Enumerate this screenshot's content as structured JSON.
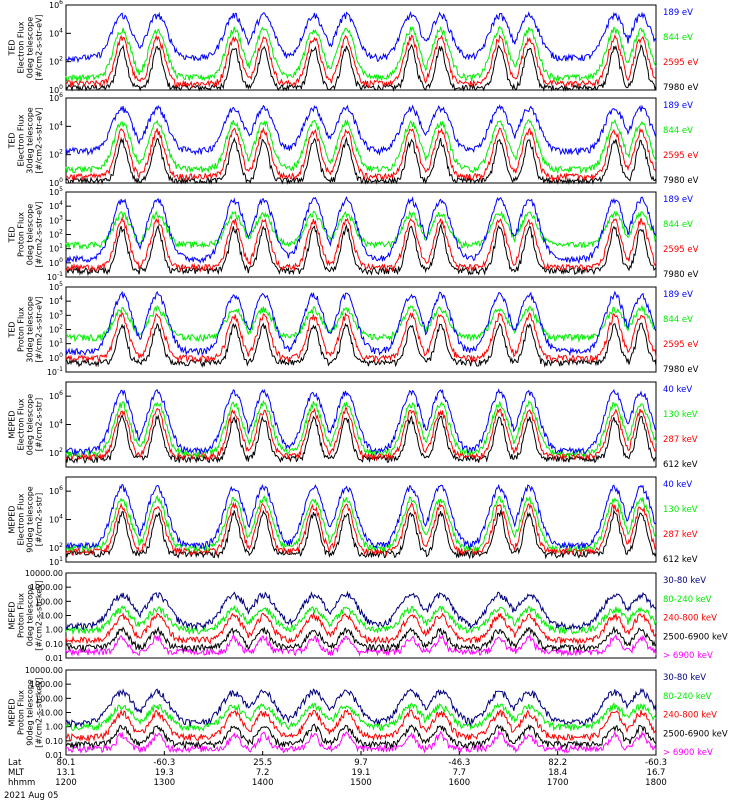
{
  "colors": {
    "blue": "#0000ff",
    "green": "#00ee00",
    "red": "#ff0000",
    "black": "#000000",
    "magenta": "#ff00ff",
    "dark_blue": "#00007f"
  },
  "chart_data": [
    {
      "type": "line",
      "panel": 1,
      "ylabel": [
        "TED",
        "Electron Flux",
        "0deg telescope",
        "[#/cm2-s-str-eV]"
      ],
      "yscale": "log",
      "ylim": [
        1,
        1000000
      ],
      "yticks": [
        "10^0",
        "10^2",
        "10^4",
        "10^6"
      ],
      "series": [
        {
          "name": "7980 eV",
          "color": "black",
          "baseline": 1.5,
          "peak": 1000
        },
        {
          "name": "2595 eV",
          "color": "red",
          "baseline": 3,
          "peak": 5000
        },
        {
          "name": "844 eV",
          "color": "green",
          "baseline": 8,
          "peak": 20000
        },
        {
          "name": "189 eV",
          "color": "blue",
          "baseline": 200,
          "peak": 200000
        }
      ]
    },
    {
      "type": "line",
      "panel": 2,
      "ylabel": [
        "TED",
        "Electron Flux",
        "30deg telescope",
        "[#/cm2-s-str-eV]"
      ],
      "yscale": "log",
      "ylim": [
        1,
        1000000
      ],
      "yticks": [
        "10^0",
        "10^2",
        "10^4",
        "10^6"
      ],
      "series": [
        {
          "name": "7980 eV",
          "color": "black",
          "baseline": 1.5,
          "peak": 1000
        },
        {
          "name": "2595 eV",
          "color": "red",
          "baseline": 3,
          "peak": 5000
        },
        {
          "name": "844 eV",
          "color": "green",
          "baseline": 10,
          "peak": 20000
        },
        {
          "name": "189 eV",
          "color": "blue",
          "baseline": 200,
          "peak": 200000
        }
      ]
    },
    {
      "type": "line",
      "panel": 3,
      "ylabel": [
        "TED",
        "Proton Flux",
        "0deg telescope",
        "[#/cm2-s-str-eV]"
      ],
      "yscale": "log",
      "ylim": [
        0.1,
        100000
      ],
      "yticks": [
        "10^-1",
        "10^0",
        "10^1",
        "10^2",
        "10^3",
        "10^4",
        "10^5"
      ],
      "series": [
        {
          "name": "7980 eV",
          "color": "black",
          "baseline": 0.3,
          "peak": 300
        },
        {
          "name": "2595 eV",
          "color": "red",
          "baseline": 0.5,
          "peak": 1000
        },
        {
          "name": "844 eV",
          "color": "green",
          "baseline": 20,
          "peak": 3000
        },
        {
          "name": "189 eV",
          "color": "blue",
          "baseline": 2,
          "peak": 30000
        }
      ]
    },
    {
      "type": "line",
      "panel": 4,
      "ylabel": [
        "TED",
        "Proton Flux",
        "30deg telescope",
        "[#/cm2-s-str-eV]"
      ],
      "yscale": "log",
      "ylim": [
        0.1,
        100000
      ],
      "yticks": [
        "10^-1",
        "10^0",
        "10^1",
        "10^2",
        "10^3",
        "10^4",
        "10^5"
      ],
      "series": [
        {
          "name": "7980 eV",
          "color": "black",
          "baseline": 0.5,
          "peak": 200
        },
        {
          "name": "2595 eV",
          "color": "red",
          "baseline": 1,
          "peak": 1000
        },
        {
          "name": "844 eV",
          "color": "green",
          "baseline": 30,
          "peak": 3000
        },
        {
          "name": "189 eV",
          "color": "blue",
          "baseline": 3,
          "peak": 30000
        }
      ]
    },
    {
      "type": "line",
      "panel": 5,
      "ylabel": [
        "MEPED",
        "Electron Flux",
        "0deg telescope",
        "[#/cm2-s-str]"
      ],
      "yscale": "log",
      "ylim": [
        10,
        10000000
      ],
      "yticks": [
        "10^2",
        "10^4",
        "10^6"
      ],
      "series": [
        {
          "name": "612 keV",
          "color": "black",
          "baseline": 40,
          "peak": 30000
        },
        {
          "name": "287 keV",
          "color": "red",
          "baseline": 60,
          "peak": 100000
        },
        {
          "name": "130 keV",
          "color": "green",
          "baseline": 100,
          "peak": 300000
        },
        {
          "name": "40 keV",
          "color": "blue",
          "baseline": 150,
          "peak": 2000000
        }
      ]
    },
    {
      "type": "line",
      "panel": 6,
      "ylabel": [
        "MEPED",
        "Electron Flux",
        "90deg telescope",
        "[#/cm2-s-str]"
      ],
      "yscale": "log",
      "ylim": [
        10,
        10000000
      ],
      "yticks": [
        "10^1",
        "10^2",
        "10^4",
        "10^6"
      ],
      "series": [
        {
          "name": "612 keV",
          "color": "black",
          "baseline": 40,
          "peak": 30000
        },
        {
          "name": "287 keV",
          "color": "red",
          "baseline": 60,
          "peak": 100000
        },
        {
          "name": "130 keV",
          "color": "green",
          "baseline": 100,
          "peak": 300000
        },
        {
          "name": "40 keV",
          "color": "blue",
          "baseline": 150,
          "peak": 2000000
        }
      ]
    },
    {
      "type": "scatter",
      "panel": 7,
      "ylabel": [
        "MEPED",
        "Proton Flux",
        "0deg telescope",
        "[#/cm2-s-str-keV]"
      ],
      "yscale": "log",
      "ylim": [
        0.01,
        10000
      ],
      "yticks": [
        "10000.00",
        "1000.00",
        "100.00",
        "10.00",
        "1.00",
        "0.10",
        "0.01"
      ],
      "series": [
        {
          "name": "> 6900 keV",
          "color": "magenta",
          "baseline": 0.03,
          "peak": 0.3
        },
        {
          "name": "2500-6900 keV",
          "color": "black",
          "baseline": 0.06,
          "peak": 1
        },
        {
          "name": "240-800 keV",
          "color": "red",
          "baseline": 0.2,
          "peak": 10
        },
        {
          "name": "80-240 keV",
          "color": "green",
          "baseline": 1,
          "peak": 30
        },
        {
          "name": "30-80 keV",
          "color": "dark_blue",
          "baseline": 2,
          "peak": 300
        }
      ]
    },
    {
      "type": "scatter",
      "panel": 8,
      "ylabel": [
        "MEPED",
        "Proton Flux",
        "90deg telescope",
        "[#/cm2-s-str-keV]"
      ],
      "yscale": "log",
      "ylim": [
        0.01,
        10000
      ],
      "yticks": [
        "10000.00",
        "1000.00",
        "100.00",
        "10.00",
        "1.00",
        "0.10",
        "0.01"
      ],
      "series": [
        {
          "name": "> 6900 keV",
          "color": "magenta",
          "baseline": 0.03,
          "peak": 0.3
        },
        {
          "name": "2500-6900 keV",
          "color": "black",
          "baseline": 0.06,
          "peak": 1
        },
        {
          "name": "240-800 keV",
          "color": "red",
          "baseline": 0.2,
          "peak": 10
        },
        {
          "name": "80-240 keV",
          "color": "green",
          "baseline": 1,
          "peak": 30
        },
        {
          "name": "30-80 keV",
          "color": "dark_blue",
          "baseline": 2,
          "peak": 300
        }
      ]
    }
  ],
  "x_axis": {
    "row_labels": [
      "Lat",
      "MLT",
      "hhmm"
    ],
    "columns": [
      {
        "lat": "80.1",
        "mlt": "13.1",
        "hhmm": "1200"
      },
      {
        "lat": "-60.3",
        "mlt": "19.3",
        "hhmm": "1300"
      },
      {
        "lat": "25.5",
        "mlt": "7.2",
        "hhmm": "1400"
      },
      {
        "lat": "9.7",
        "mlt": "19.1",
        "hhmm": "1500"
      },
      {
        "lat": "-46.3",
        "mlt": "7.7",
        "hhmm": "1600"
      },
      {
        "lat": "82.2",
        "mlt": "18.4",
        "hhmm": "1700"
      },
      {
        "lat": "-60.3",
        "mlt": "16.7",
        "hhmm": "1800"
      }
    ],
    "date": "2021 Aug 05"
  }
}
